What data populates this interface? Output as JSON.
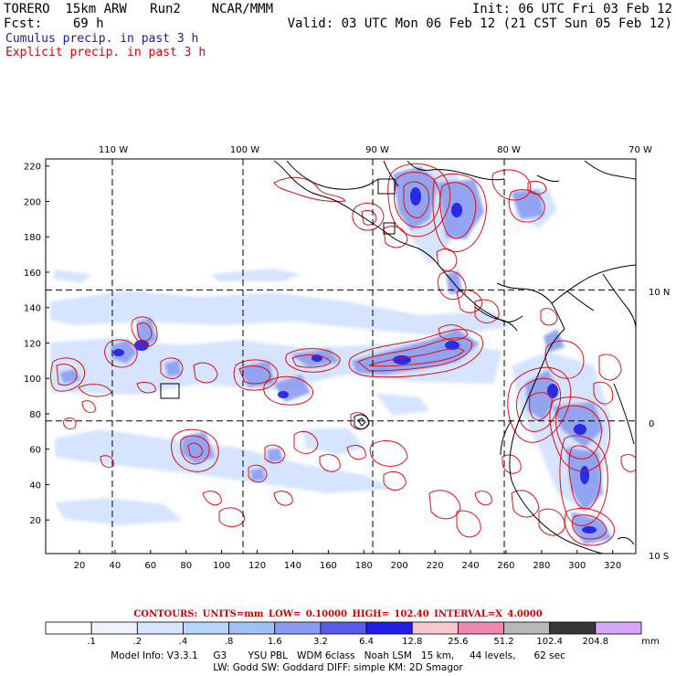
{
  "header": {
    "line1_left": "TORERO  15km ARW   Run2    NCAR/MMM",
    "line1_right": "Init: 06 UTC Fri 03 Feb 12",
    "line2_left": "Fcst:    69 h",
    "line2_right": "Valid: 03 UTC Mon 06 Feb 12 (21 CST Sun 05 Feb 12)",
    "cumulus_label": "Cumulus precip. in past 3 h",
    "explicit_label": "Explicit precip. in past 3 h"
  },
  "colors": {
    "cumulus": "#1a1aa8",
    "explicit": "#e00000",
    "contour": "#e01010",
    "coast": "#000000"
  },
  "map": {
    "lon_labels": [
      "110 W",
      "100 W",
      "90 W",
      "80 W",
      "70 W"
    ],
    "lat_labels": [
      "10 N",
      "0",
      "10 S"
    ],
    "x_ticks": [
      "20",
      "40",
      "60",
      "80",
      "100",
      "120",
      "140",
      "160",
      "180",
      "200",
      "220",
      "240",
      "260",
      "280",
      "300",
      "320"
    ],
    "y_ticks": [
      "20",
      "40",
      "60",
      "80",
      "100",
      "120",
      "140",
      "160",
      "180",
      "200",
      "220"
    ],
    "x_range": [
      1,
      333
    ],
    "y_range": [
      1,
      224
    ],
    "meridians_x": [
      38.5,
      112,
      185,
      259
    ],
    "parallels_y": [
      150,
      76
    ]
  },
  "colorbar": {
    "levels": [
      ".1",
      ".2",
      ".4",
      ".8",
      "1.6",
      "3.2",
      "6.4",
      "12.8",
      "25.6",
      "51.2",
      "102.4",
      "204.8"
    ],
    "colors": [
      "#ffffff",
      "#eef4ff",
      "#d6e6ff",
      "#b8d4ff",
      "#a0c0f8",
      "#8a9cf0",
      "#5a5ae6",
      "#1e1ee6",
      "#f6c8cc",
      "#ef88b0",
      "#b8b8b8",
      "#383838",
      "#d8a6f8"
    ],
    "units": "mm"
  },
  "contours_text": "CONTOURS:  UNITS=mm  LOW= 0.10000      HIGH=  102.40      INTERVAL=X  4.0000",
  "model_info_1": "Model Info: V3.3.1     G3       YSU PBL   WDM 6class   Noah LSM   15 km,     44 levels,      62 sec",
  "model_info_2": "LW: Godd SW: Goddard DIFF: simple KM: 2D Smagor"
}
